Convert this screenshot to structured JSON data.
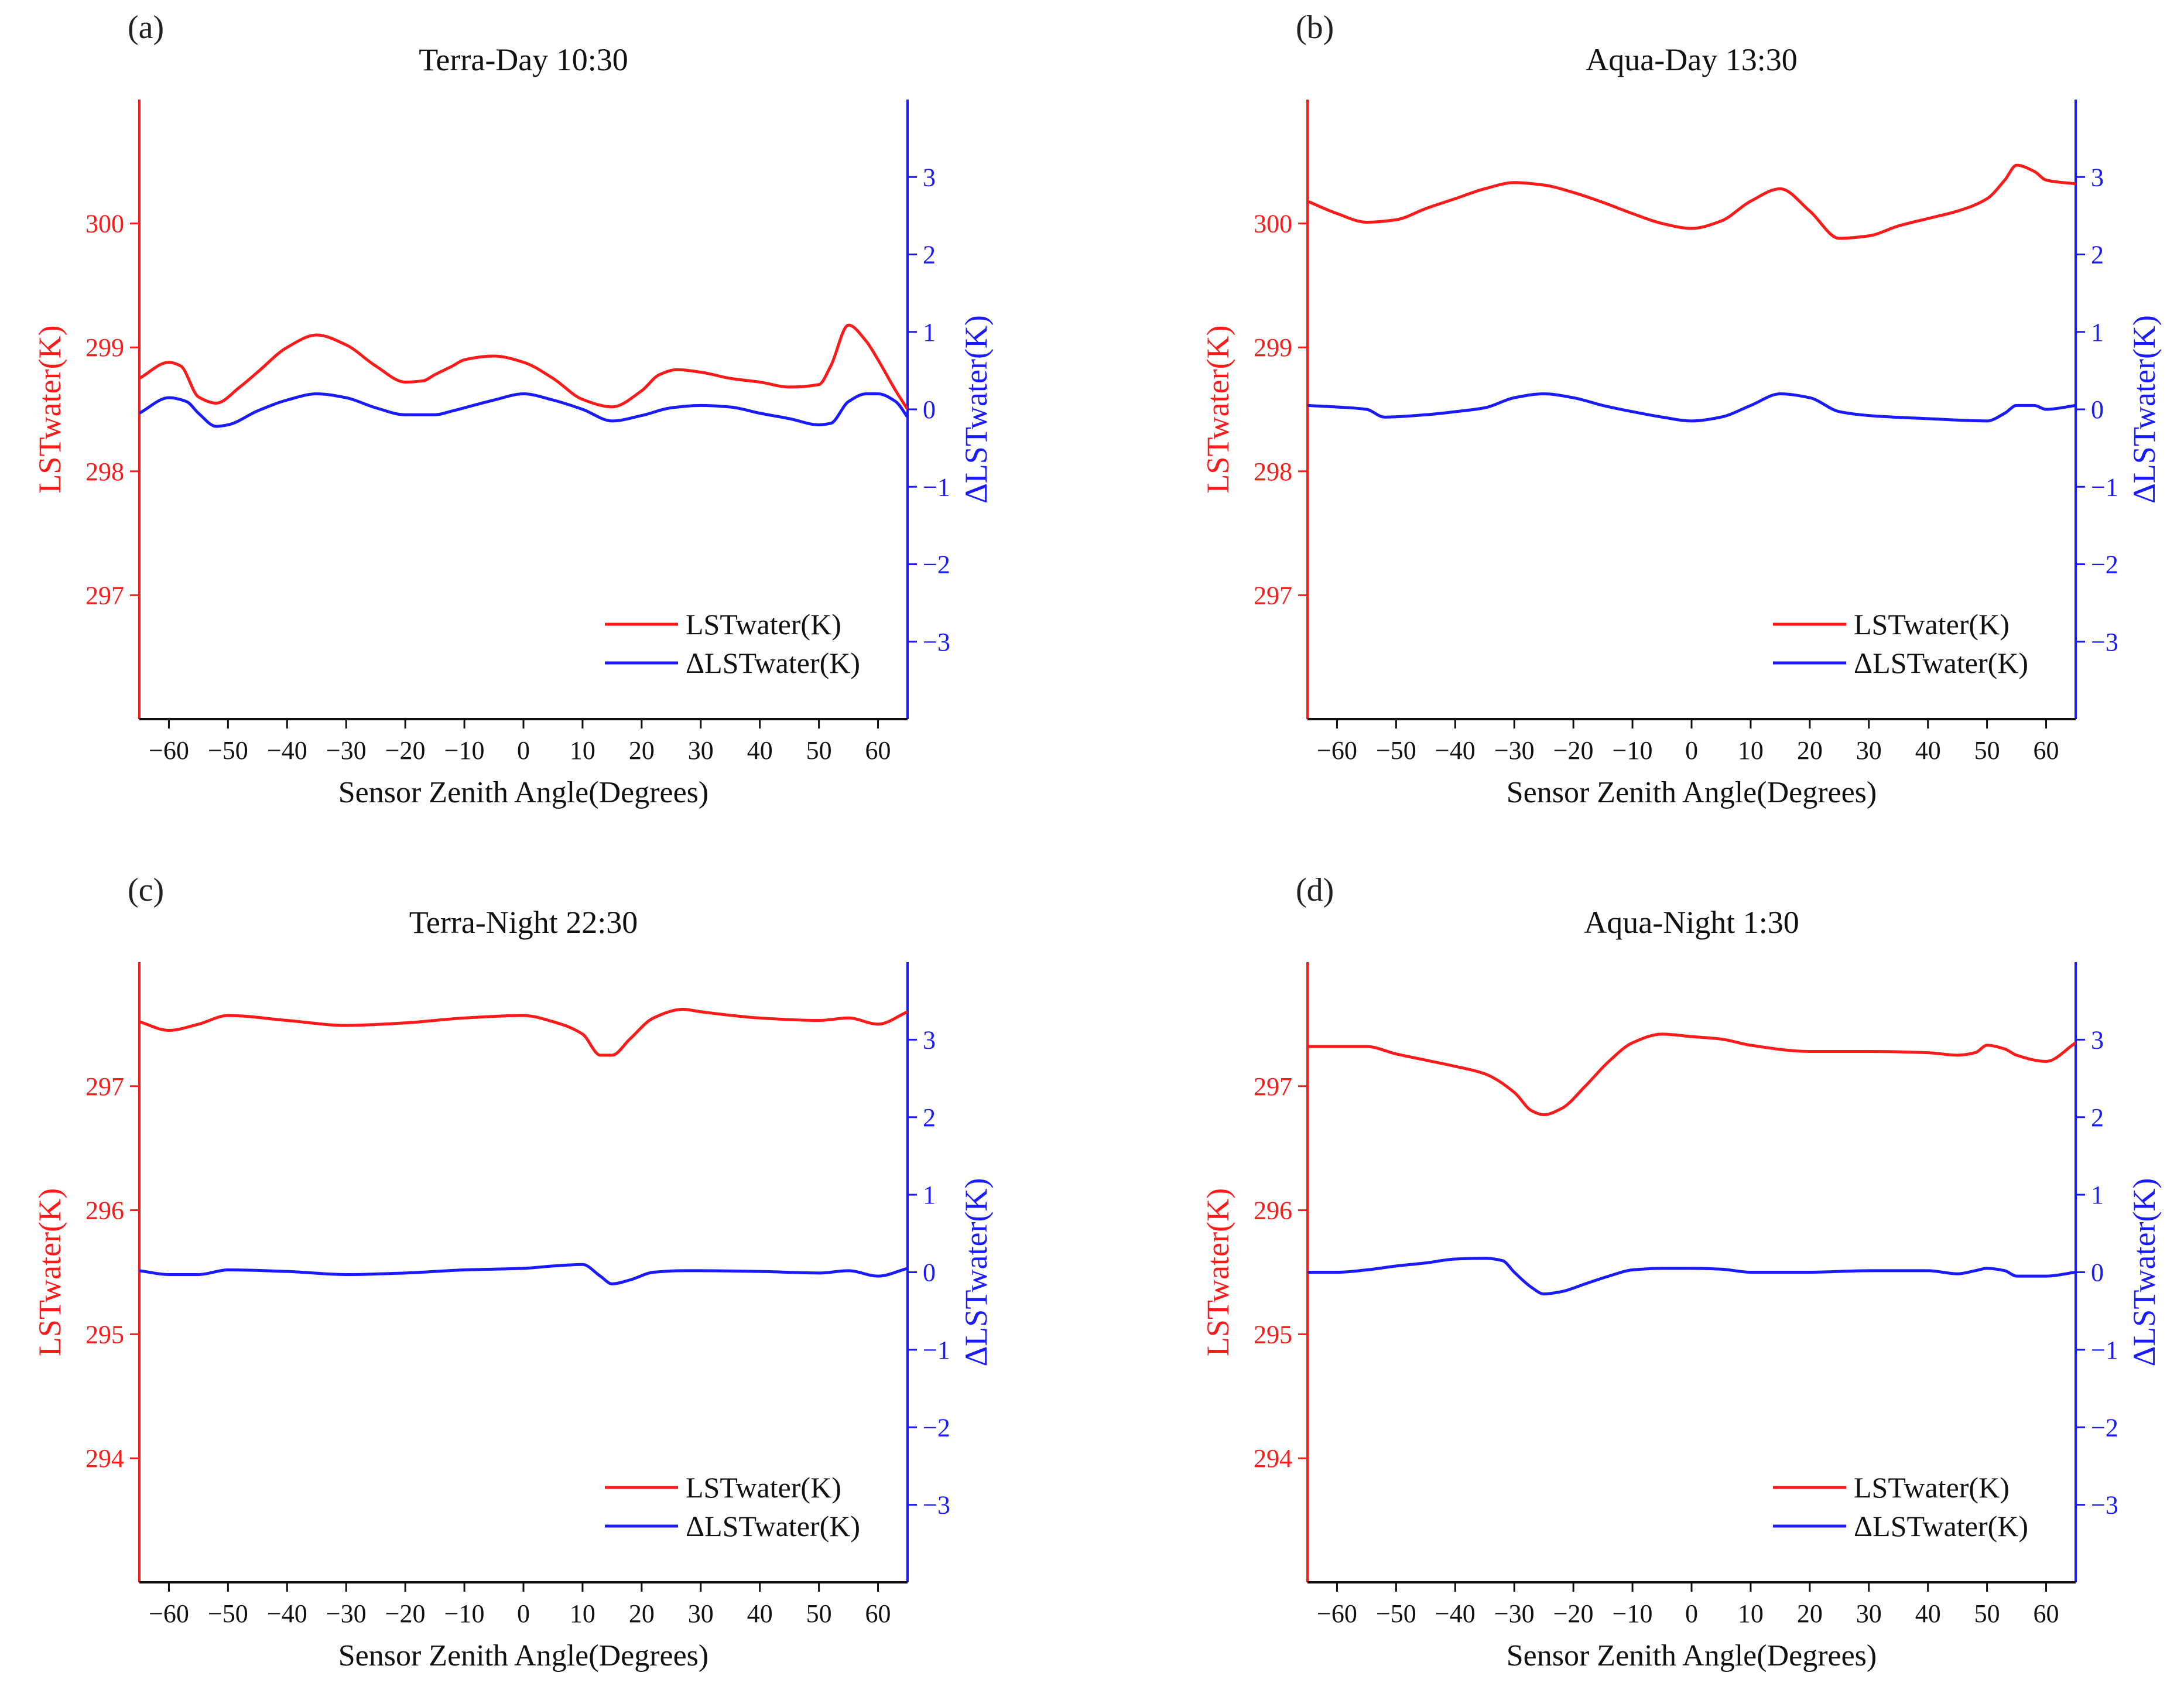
{
  "colors": {
    "lst": "#ff1a1a",
    "dlst": "#1a1aff",
    "axis_x": "#111111"
  },
  "chart_data": [
    {
      "type": "line",
      "panel": "(a)",
      "title": "Terra-Day 10:30",
      "xlabel": "Sensor Zenith Angle(Degrees)",
      "ylabel_left": "LSTwater(K)",
      "ylabel_right": "ΔLSTwater(K)",
      "xlim": [
        -65,
        65
      ],
      "ylim_left": [
        296,
        301
      ],
      "ylim_right": [
        -4,
        4
      ],
      "xticks": [
        -60,
        -50,
        -40,
        -30,
        -20,
        -10,
        0,
        10,
        20,
        30,
        40,
        50,
        60
      ],
      "yticks_left": [
        297,
        298,
        299,
        300
      ],
      "yticks_right": [
        -3,
        -2,
        -1,
        0,
        1,
        2,
        3
      ],
      "ytick_labels_right": [
        "−3",
        "−2",
        "−1",
        "0",
        "1",
        "2",
        "3"
      ],
      "legend": [
        "LSTwater(K)",
        "ΔLSTwater(K)"
      ],
      "legend_position": "bottom-right",
      "series": [
        {
          "name": "LSTwater(K)",
          "axis": "left",
          "color": "#ff1a1a",
          "x": [
            -65,
            -60,
            -58,
            -55,
            -52,
            -48,
            -45,
            -40,
            -35,
            -30,
            -25,
            -20,
            -17,
            -15,
            -12,
            -10,
            -5,
            0,
            5,
            10,
            15,
            20,
            23,
            26,
            30,
            35,
            40,
            45,
            50,
            52,
            55,
            58,
            60,
            63,
            65
          ],
          "y": [
            298.75,
            298.88,
            298.85,
            298.6,
            298.55,
            298.68,
            298.8,
            299.0,
            299.1,
            299.02,
            298.85,
            298.72,
            298.73,
            298.78,
            298.85,
            298.9,
            298.93,
            298.88,
            298.75,
            298.58,
            298.52,
            298.65,
            298.78,
            298.82,
            298.8,
            298.75,
            298.72,
            298.68,
            298.7,
            298.85,
            299.18,
            299.05,
            298.9,
            298.65,
            298.5
          ]
        },
        {
          "name": "ΔLSTwater(K)",
          "axis": "right",
          "color": "#1a1aff",
          "x": [
            -65,
            -60,
            -57,
            -55,
            -52,
            -50,
            -45,
            -40,
            -35,
            -30,
            -25,
            -20,
            -15,
            -12,
            -10,
            -5,
            0,
            5,
            10,
            15,
            20,
            25,
            30,
            35,
            40,
            45,
            50,
            52,
            55,
            58,
            60,
            63,
            65
          ],
          "y": [
            -0.05,
            0.15,
            0.1,
            -0.05,
            -0.22,
            -0.2,
            -0.02,
            0.12,
            0.2,
            0.15,
            0.02,
            -0.07,
            -0.07,
            -0.02,
            0.02,
            0.12,
            0.2,
            0.12,
            0.0,
            -0.15,
            -0.08,
            0.02,
            0.05,
            0.03,
            -0.05,
            -0.12,
            -0.2,
            -0.18,
            0.1,
            0.2,
            0.2,
            0.1,
            -0.1
          ]
        }
      ]
    },
    {
      "type": "line",
      "panel": "(b)",
      "title": "Aqua-Day 13:30",
      "xlabel": "Sensor Zenith Angle(Degrees)",
      "ylabel_left": "LSTwater(K)",
      "ylabel_right": "ΔLSTwater(K)",
      "xlim": [
        -65,
        65
      ],
      "ylim_left": [
        296,
        301
      ],
      "ylim_right": [
        -4,
        4
      ],
      "xticks": [
        -60,
        -50,
        -40,
        -30,
        -20,
        -10,
        0,
        10,
        20,
        30,
        40,
        50,
        60
      ],
      "yticks_left": [
        297,
        298,
        299,
        300
      ],
      "yticks_right": [
        -3,
        -2,
        -1,
        0,
        1,
        2,
        3
      ],
      "ytick_labels_right": [
        "−3",
        "−2",
        "−1",
        "0",
        "1",
        "2",
        "3"
      ],
      "legend": [
        "LSTwater(K)",
        "ΔLSTwater(K)"
      ],
      "legend_position": "bottom-right",
      "series": [
        {
          "name": "LSTwater(K)",
          "axis": "left",
          "color": "#ff1a1a",
          "x": [
            -65,
            -60,
            -55,
            -50,
            -45,
            -40,
            -35,
            -30,
            -25,
            -20,
            -15,
            -10,
            -5,
            0,
            5,
            10,
            15,
            20,
            25,
            30,
            35,
            40,
            45,
            50,
            53,
            55,
            58,
            60,
            65
          ],
          "y": [
            300.18,
            300.08,
            300.01,
            300.03,
            300.12,
            300.2,
            300.28,
            300.33,
            300.31,
            300.25,
            300.17,
            300.08,
            300.0,
            299.96,
            300.02,
            300.18,
            300.28,
            300.1,
            299.88,
            299.9,
            299.98,
            300.04,
            300.1,
            300.2,
            300.35,
            300.47,
            300.42,
            300.35,
            300.32
          ]
        },
        {
          "name": "ΔLSTwater(K)",
          "axis": "right",
          "color": "#1a1aff",
          "x": [
            -65,
            -60,
            -55,
            -52,
            -45,
            -40,
            -35,
            -30,
            -25,
            -20,
            -15,
            -10,
            -5,
            0,
            5,
            10,
            15,
            20,
            25,
            30,
            40,
            50,
            53,
            55,
            58,
            60,
            65
          ],
          "y": [
            0.05,
            0.03,
            0.0,
            -0.1,
            -0.07,
            -0.03,
            0.02,
            0.15,
            0.2,
            0.15,
            0.05,
            -0.03,
            -0.1,
            -0.15,
            -0.1,
            0.05,
            0.2,
            0.15,
            -0.03,
            -0.08,
            -0.12,
            -0.15,
            -0.05,
            0.05,
            0.05,
            0.0,
            0.05
          ]
        }
      ]
    },
    {
      "type": "line",
      "panel": "(c)",
      "title": "Terra-Night 22:30",
      "xlabel": "Sensor Zenith Angle(Degrees)",
      "ylabel_left": "LSTwater(K)",
      "ylabel_right": "ΔLSTwater(K)",
      "xlim": [
        -65,
        65
      ],
      "ylim_left": [
        293,
        298
      ],
      "ylim_right": [
        -4,
        4
      ],
      "xticks": [
        -60,
        -50,
        -40,
        -30,
        -20,
        -10,
        0,
        10,
        20,
        30,
        40,
        50,
        60
      ],
      "yticks_left": [
        294,
        295,
        296,
        297
      ],
      "yticks_right": [
        -3,
        -2,
        -1,
        0,
        1,
        2,
        3
      ],
      "ytick_labels_right": [
        "−3",
        "−2",
        "−1",
        "0",
        "1",
        "2",
        "3"
      ],
      "legend": [
        "LSTwater(K)",
        "ΔLSTwater(K)"
      ],
      "legend_position": "bottom-right",
      "series": [
        {
          "name": "LSTwater(K)",
          "axis": "left",
          "color": "#ff1a1a",
          "x": [
            -65,
            -60,
            -55,
            -50,
            -40,
            -30,
            -20,
            -10,
            0,
            5,
            10,
            13,
            15,
            18,
            22,
            27,
            30,
            40,
            50,
            55,
            60,
            65
          ],
          "y": [
            297.52,
            297.45,
            297.5,
            297.57,
            297.53,
            297.49,
            297.51,
            297.55,
            297.57,
            297.52,
            297.42,
            297.25,
            297.25,
            297.38,
            297.55,
            297.62,
            297.6,
            297.55,
            297.53,
            297.55,
            297.5,
            297.6
          ]
        },
        {
          "name": "ΔLSTwater(K)",
          "axis": "right",
          "color": "#1a1aff",
          "x": [
            -65,
            -60,
            -55,
            -50,
            -40,
            -30,
            -20,
            -10,
            0,
            5,
            10,
            13,
            15,
            18,
            22,
            27,
            30,
            40,
            50,
            55,
            60,
            65
          ],
          "y": [
            0.02,
            -0.03,
            -0.03,
            0.03,
            0.01,
            -0.03,
            -0.01,
            0.03,
            0.05,
            0.08,
            0.1,
            -0.05,
            -0.15,
            -0.1,
            0.0,
            0.02,
            0.02,
            0.01,
            -0.01,
            0.02,
            -0.05,
            0.05
          ]
        }
      ]
    },
    {
      "type": "line",
      "panel": "(d)",
      "title": "Aqua-Night 1:30",
      "xlabel": "Sensor Zenith Angle(Degrees)",
      "ylabel_left": "LSTwater(K)",
      "ylabel_right": "ΔLSTwater(K)",
      "xlim": [
        -65,
        65
      ],
      "ylim_left": [
        293,
        298
      ],
      "ylim_right": [
        -4,
        4
      ],
      "xticks": [
        -60,
        -50,
        -40,
        -30,
        -20,
        -10,
        0,
        10,
        20,
        30,
        40,
        50,
        60
      ],
      "yticks_left": [
        294,
        295,
        296,
        297
      ],
      "yticks_right": [
        -3,
        -2,
        -1,
        0,
        1,
        2,
        3
      ],
      "ytick_labels_right": [
        "−3",
        "−2",
        "−1",
        "0",
        "1",
        "2",
        "3"
      ],
      "legend": [
        "LSTwater(K)",
        "ΔLSTwater(K)"
      ],
      "legend_position": "bottom-right",
      "series": [
        {
          "name": "LSTwater(K)",
          "axis": "left",
          "color": "#ff1a1a",
          "x": [
            -65,
            -60,
            -55,
            -50,
            -45,
            -40,
            -35,
            -30,
            -27,
            -25,
            -22,
            -18,
            -14,
            -10,
            -5,
            0,
            5,
            10,
            20,
            30,
            40,
            45,
            48,
            50,
            53,
            55,
            60,
            65
          ],
          "y": [
            297.32,
            297.32,
            297.32,
            297.26,
            297.21,
            297.16,
            297.1,
            296.95,
            296.8,
            296.77,
            296.82,
            297.0,
            297.2,
            297.35,
            297.42,
            297.4,
            297.38,
            297.33,
            297.28,
            297.28,
            297.27,
            297.25,
            297.27,
            297.33,
            297.3,
            297.25,
            297.2,
            297.35
          ]
        },
        {
          "name": "ΔLSTwater(K)",
          "axis": "right",
          "color": "#1a1aff",
          "x": [
            -65,
            -60,
            -55,
            -50,
            -45,
            -40,
            -35,
            -32,
            -30,
            -27,
            -25,
            -22,
            -18,
            -14,
            -10,
            -5,
            0,
            5,
            10,
            20,
            30,
            40,
            45,
            48,
            50,
            53,
            55,
            60,
            65
          ],
          "y": [
            0.0,
            0.0,
            0.03,
            0.08,
            0.12,
            0.17,
            0.18,
            0.15,
            0.0,
            -0.2,
            -0.28,
            -0.25,
            -0.15,
            -0.05,
            0.03,
            0.05,
            0.05,
            0.04,
            0.0,
            0.0,
            0.02,
            0.02,
            -0.02,
            0.02,
            0.05,
            0.02,
            -0.05,
            -0.05,
            0.0
          ]
        }
      ]
    }
  ]
}
